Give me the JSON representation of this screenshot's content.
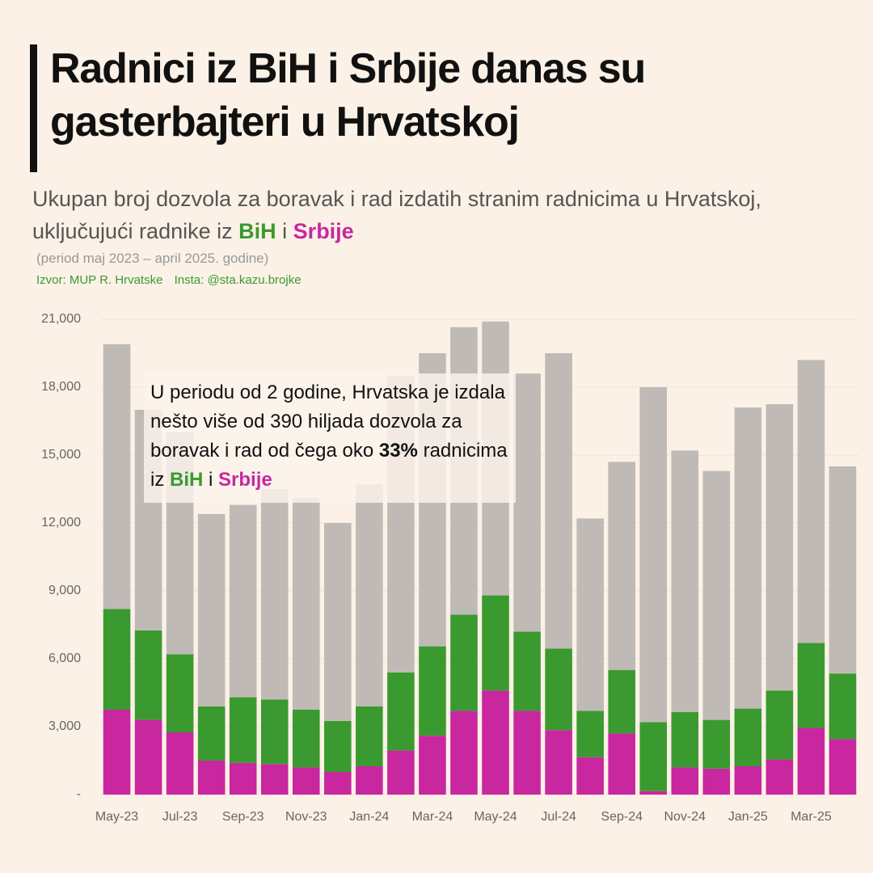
{
  "chart_data": {
    "type": "stacked_bar",
    "title": "Radnici iz BiH i Srbije danas su gasterbajteri u Hrvatskoj",
    "subtitle": [
      "Ukupan broj dozvola za boravak i rad izdatih stranim radnicima u Hrvatskoj, uključujući radnike iz",
      "BiH",
      "i",
      "Srbije"
    ],
    "period": "(period maj 2023 – april 2025. godine)",
    "source": [
      "Izvor: MUP R. Hrvatske",
      "Insta: @sta.kazu.brojke"
    ],
    "annotation": [
      "U periodu od 2 godine, Hrvatska je izdala nešto više od 390 hiljada dozvola za boravak i rad od čega oko",
      "33%",
      "radnicima iz",
      "BiH",
      "i",
      "Srbije"
    ],
    "categories": [
      "May-23",
      null,
      "Jul-23",
      null,
      "Sep-23",
      null,
      "Nov-23",
      null,
      "Jan-24",
      null,
      "Mar-24",
      null,
      "May-24",
      null,
      "Jul-24",
      null,
      "Sep-24",
      null,
      "Nov-24",
      null,
      "Jan-25",
      null,
      "Mar-25",
      null
    ],
    "series": [
      {
        "name": "Srbije",
        "color": "#c8279f",
        "values": [
          3750,
          3300,
          2750,
          1500,
          1400,
          1350,
          1200,
          1000,
          1250,
          1950,
          2600,
          3700,
          4600,
          3700,
          2850,
          1650,
          2700,
          150,
          1200,
          1150,
          1250,
          1550,
          2950,
          2450
        ]
      },
      {
        "name": "BiH",
        "color": "#3a9a2f",
        "values": [
          4450,
          3950,
          3450,
          2400,
          2900,
          2850,
          2550,
          2250,
          2650,
          3450,
          3950,
          4250,
          4200,
          3500,
          3600,
          2050,
          2800,
          3050,
          2450,
          2150,
          2550,
          3050,
          3750,
          2900
        ]
      },
      {
        "color": "#bfbab6",
        "values": [
          11700,
          9750,
          9800,
          8500,
          8500,
          9300,
          9350,
          8750,
          9800,
          13100,
          12950,
          12700,
          12100,
          11400,
          13050,
          8500,
          9200,
          14800,
          11550,
          11000,
          13300,
          12650,
          12500,
          9150
        ]
      }
    ],
    "ylim": [
      0,
      21000
    ],
    "yticks": [
      {
        "value": 0,
        "label": "-"
      },
      {
        "value": 3000,
        "label": "3,000"
      },
      {
        "value": 6000,
        "label": "6,000"
      },
      {
        "value": 9000,
        "label": "9,000"
      },
      {
        "value": 12000,
        "label": "12,000"
      },
      {
        "value": 15000,
        "label": "15,000"
      },
      {
        "value": 18000,
        "label": "18,000"
      },
      {
        "value": 21000,
        "label": "21,000"
      }
    ],
    "grid": true
  }
}
